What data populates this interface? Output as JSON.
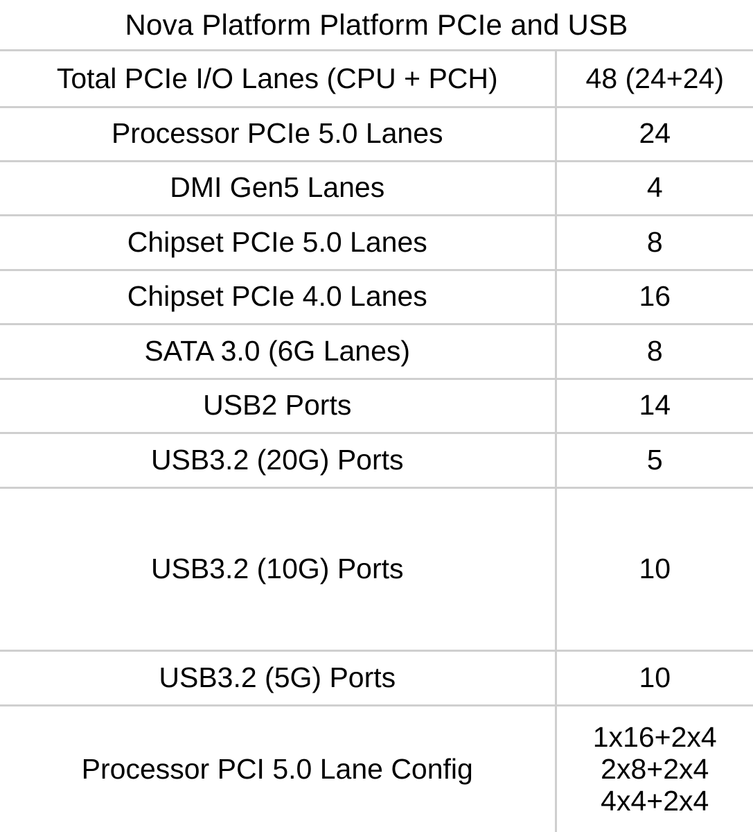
{
  "title": "Nova Platform Platform PCIe and USB",
  "rows": [
    {
      "label": "Total PCIe I/O Lanes (CPU + PCH)",
      "value": "48 (24+24)"
    },
    {
      "label": "Processor PCIe 5.0 Lanes",
      "value": "24"
    },
    {
      "label": "DMI Gen5 Lanes",
      "value": "4"
    },
    {
      "label": "Chipset PCIe 5.0 Lanes",
      "value": "8"
    },
    {
      "label": "Chipset PCIe 4.0 Lanes",
      "value": "16"
    },
    {
      "label": "SATA 3.0 (6G Lanes)",
      "value": "8"
    },
    {
      "label": "USB2 Ports",
      "value": "14"
    },
    {
      "label": "USB3.2 (20G) Ports",
      "value": "5"
    },
    {
      "label": "USB3.2 (10G) Ports",
      "value": "10"
    },
    {
      "label": "USB3.2 (5G) Ports",
      "value": "10"
    },
    {
      "label": "Processor PCI 5.0 Lane Config",
      "values": [
        "1x16+2x4",
        "2x8+2x4",
        "4x4+2x4"
      ]
    }
  ]
}
